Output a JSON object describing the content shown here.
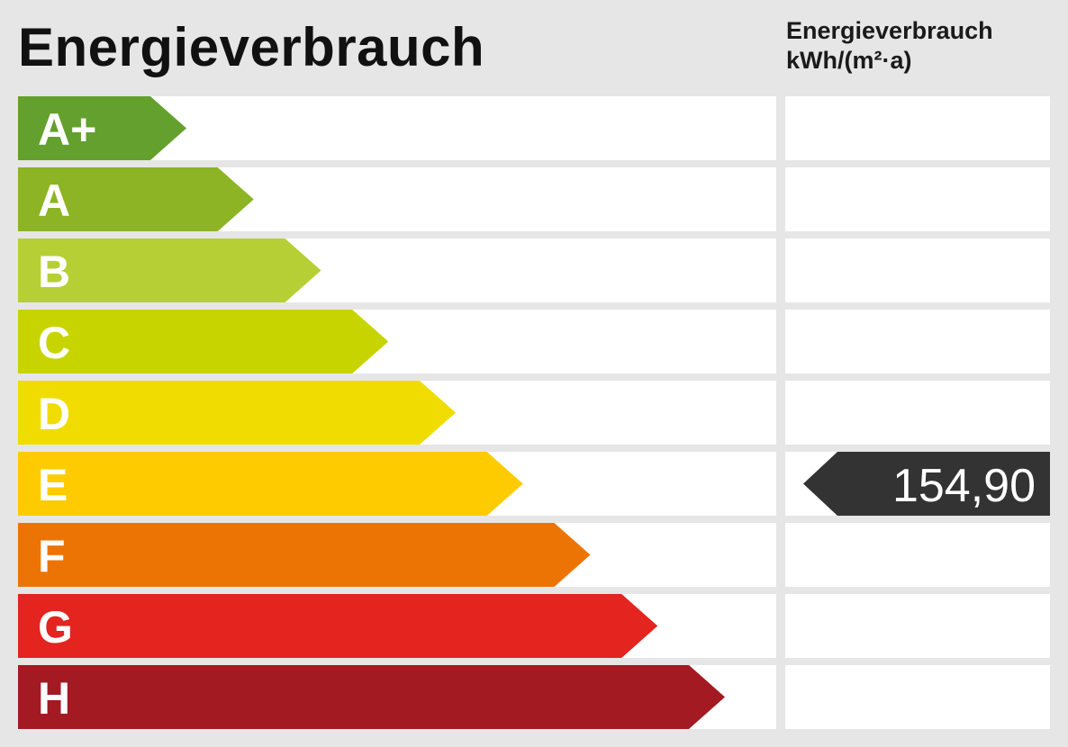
{
  "chart_data": {
    "type": "bar",
    "title": "Energieverbrauch",
    "value_column_label": "Energieverbrauch",
    "unit": "kWh/(m²·a)",
    "categories": [
      "A+",
      "A",
      "B",
      "C",
      "D",
      "E",
      "F",
      "G",
      "H"
    ],
    "colors": [
      "#63a02d",
      "#8cb424",
      "#b6cf34",
      "#c8d400",
      "#f0dc00",
      "#fecb00",
      "#ec7405",
      "#e3241f",
      "#a31a22"
    ],
    "marker": {
      "class": "E",
      "value": 154.9,
      "label": "154,90",
      "color": "#333333"
    }
  }
}
